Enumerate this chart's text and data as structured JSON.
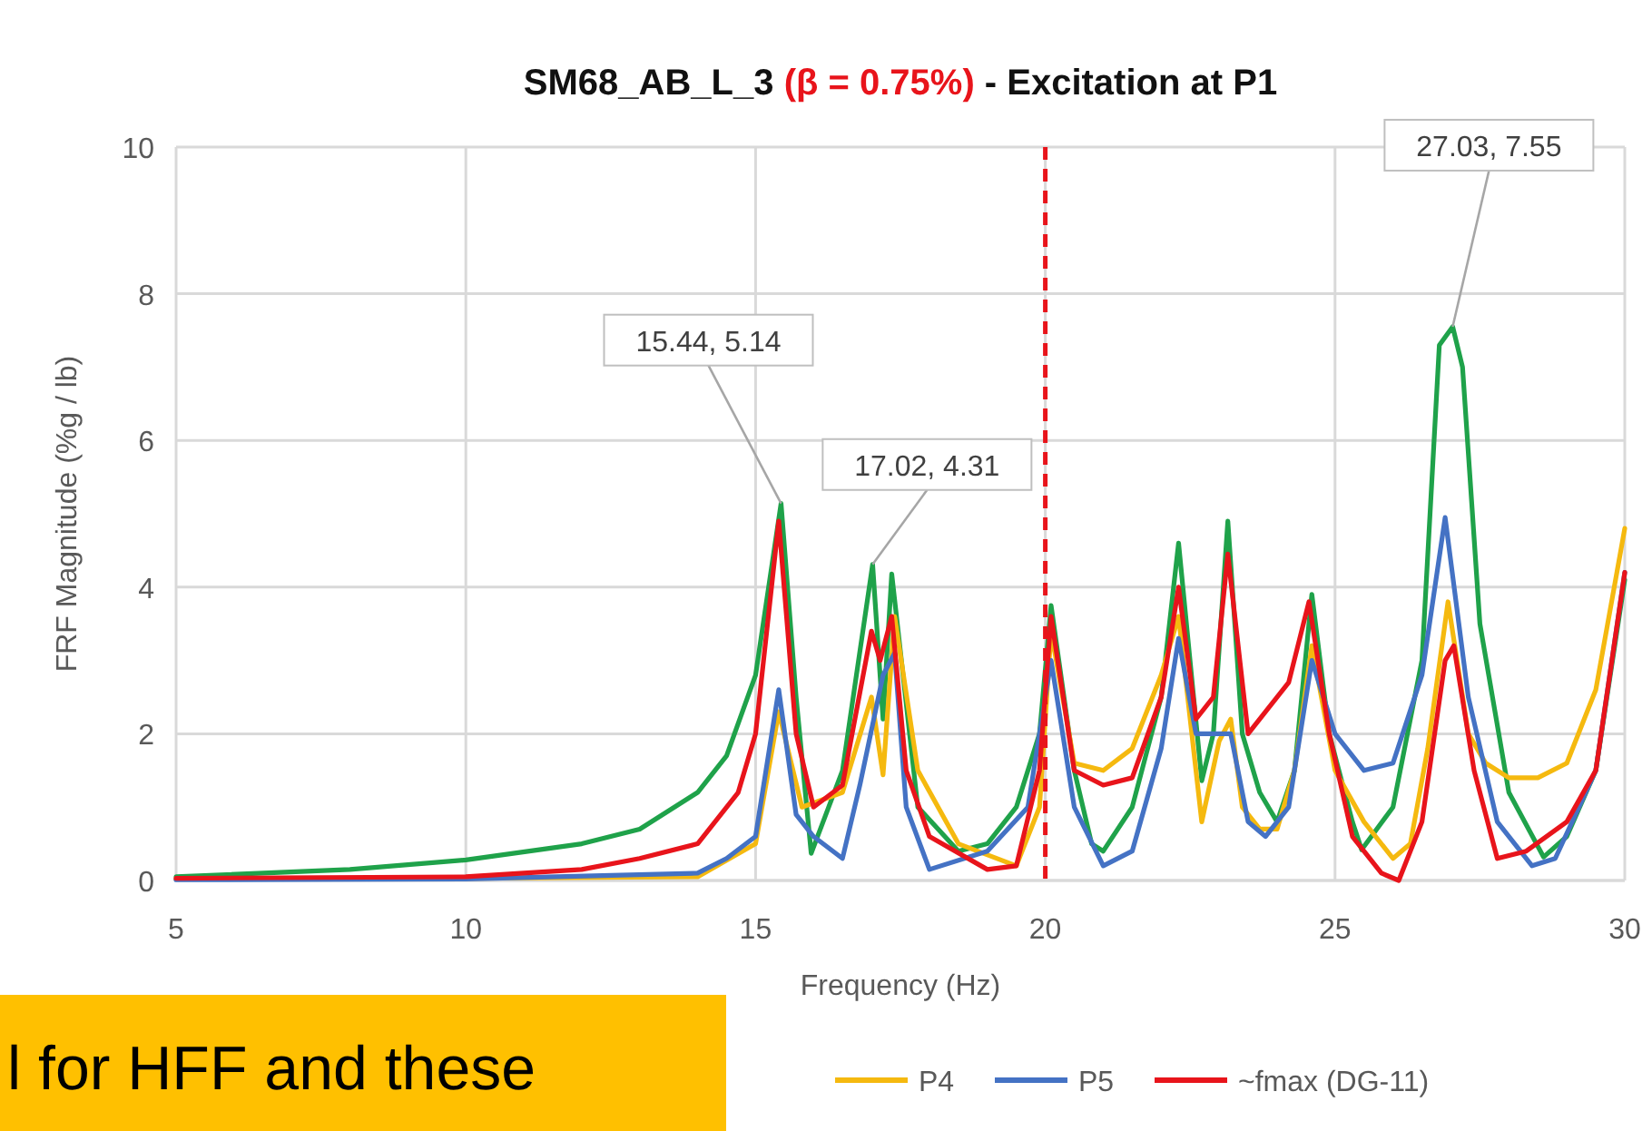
{
  "chart_data": {
    "type": "line",
    "title": "SM68_AB_L_3 (β = 0.75%) - Excitation at P1",
    "xlabel": "Frequency (Hz)",
    "ylabel": "FRF Magnitude (%g / lb)",
    "xlim": [
      5,
      30
    ],
    "xticks": [
      5,
      10,
      15,
      20,
      25,
      30
    ],
    "ylim": [
      0,
      10
    ],
    "yticks": [
      0,
      2,
      4,
      6,
      8,
      10
    ],
    "grid": true,
    "legend": "bottom",
    "marker": "none",
    "series": [
      {
        "color": "#1fa24a",
        "x": [
          5,
          8,
          10,
          12,
          13,
          14,
          14.5,
          15,
          15.44,
          15.7,
          15.96,
          16.5,
          17.02,
          17.2,
          17.35,
          17.8,
          18.5,
          19,
          19.5,
          19.9,
          20.1,
          20.5,
          20.8,
          21,
          21.5,
          22,
          22.3,
          22.7,
          22.9,
          23.15,
          23.4,
          23.7,
          24,
          24.3,
          24.6,
          24.9,
          25.3,
          25.46,
          26,
          26.5,
          26.8,
          27.03,
          27.2,
          27.5,
          28,
          28.6,
          29,
          29.5,
          30
        ],
        "values": [
          0.05,
          0.15,
          0.28,
          0.5,
          0.7,
          1.2,
          1.7,
          2.8,
          5.14,
          2.5,
          0.37,
          1.5,
          4.31,
          2.2,
          4.18,
          1.0,
          0.4,
          0.5,
          1.0,
          2.0,
          3.75,
          1.5,
          0.5,
          0.4,
          1.0,
          2.5,
          4.6,
          1.36,
          2.0,
          4.9,
          2.0,
          1.2,
          0.8,
          1.5,
          3.9,
          2.0,
          0.8,
          0.42,
          1.0,
          3.0,
          7.3,
          7.55,
          7.0,
          3.5,
          1.2,
          0.32,
          0.6,
          1.5,
          4.1
        ]
      },
      {
        "name": "P4",
        "color": "#f5b90f",
        "x": [
          5,
          10,
          14,
          15,
          15.4,
          15.8,
          16.5,
          17,
          17.2,
          17.4,
          17.8,
          18.5,
          19.5,
          19.9,
          20.1,
          20.5,
          21,
          21.5,
          22,
          22.3,
          22.7,
          23,
          23.2,
          23.4,
          23.7,
          24,
          24.3,
          24.6,
          25,
          25.5,
          26,
          26.3,
          26.6,
          26.95,
          27.3,
          27.6,
          28,
          28.5,
          29,
          29.5,
          30
        ],
        "values": [
          0.02,
          0.03,
          0.05,
          0.5,
          2.3,
          1.0,
          1.2,
          2.5,
          1.44,
          3.6,
          1.5,
          0.5,
          0.2,
          1.0,
          3.4,
          1.6,
          1.5,
          1.8,
          2.8,
          3.6,
          0.8,
          1.9,
          2.2,
          1.0,
          0.7,
          0.7,
          1.5,
          3.2,
          1.5,
          0.8,
          0.3,
          0.5,
          1.8,
          3.8,
          2.0,
          1.6,
          1.4,
          1.4,
          1.6,
          2.6,
          4.8
        ]
      },
      {
        "name": "P5",
        "color": "#4472c4",
        "x": [
          5,
          10,
          14,
          14.5,
          15,
          15.4,
          15.7,
          16,
          16.5,
          16.8,
          17.2,
          17.4,
          17.6,
          18,
          19,
          19.7,
          20.1,
          20.5,
          21,
          21.5,
          22,
          22.3,
          22.6,
          23,
          23.2,
          23.5,
          23.8,
          24.2,
          24.6,
          25,
          25.5,
          26,
          26.5,
          26.9,
          27.3,
          27.8,
          28.4,
          28.8,
          29.5,
          30
        ],
        "values": [
          0.01,
          0.02,
          0.1,
          0.3,
          0.6,
          2.6,
          0.9,
          0.6,
          0.3,
          1.3,
          2.8,
          3.1,
          1.0,
          0.15,
          0.4,
          1.0,
          3.0,
          1.0,
          0.2,
          0.4,
          1.8,
          3.3,
          2.0,
          2.0,
          2.0,
          0.8,
          0.6,
          1.0,
          3.0,
          2.0,
          1.5,
          1.6,
          2.8,
          4.95,
          2.5,
          0.8,
          0.2,
          0.3,
          1.5,
          4.2
        ]
      },
      {
        "name": "~fmax (DG-11)",
        "color": "#e8141b",
        "x": [
          5,
          10,
          12,
          13,
          14,
          14.7,
          15,
          15.4,
          15.7,
          16,
          16.5,
          17,
          17.15,
          17.35,
          17.6,
          18,
          19,
          19.5,
          19.9,
          20.1,
          20.5,
          21,
          21.5,
          22,
          22.3,
          22.6,
          22.9,
          23.15,
          23.5,
          23.8,
          24.2,
          24.55,
          24.9,
          25.3,
          25.8,
          26.1,
          26.5,
          26.9,
          27.05,
          27.4,
          27.8,
          28.3,
          29,
          29.5,
          30
        ],
        "values": [
          0.03,
          0.05,
          0.15,
          0.3,
          0.5,
          1.2,
          2.0,
          4.9,
          2.0,
          1.0,
          1.3,
          3.4,
          3.0,
          3.6,
          1.5,
          0.6,
          0.15,
          0.2,
          1.5,
          3.6,
          1.5,
          1.3,
          1.4,
          2.5,
          4.0,
          2.2,
          2.5,
          4.45,
          2.0,
          2.3,
          2.7,
          3.8,
          2.0,
          0.6,
          0.1,
          0.0,
          0.8,
          3.0,
          3.2,
          1.5,
          0.3,
          0.4,
          0.8,
          1.5,
          4.2
        ]
      }
    ],
    "ref_lines": [
      {
        "axis": "x",
        "value": 20,
        "color": "#e8141b",
        "line_style": "dashed"
      }
    ],
    "annotations": [
      {
        "text": "15.44, 5.14",
        "x": 15.44,
        "y": 5.14
      },
      {
        "text": "17.02, 4.31",
        "x": 17.02,
        "y": 4.31
      },
      {
        "text": "27.03, 7.55",
        "x": 27.03,
        "y": 7.55
      },
      "l for HFF and these"
    ]
  }
}
